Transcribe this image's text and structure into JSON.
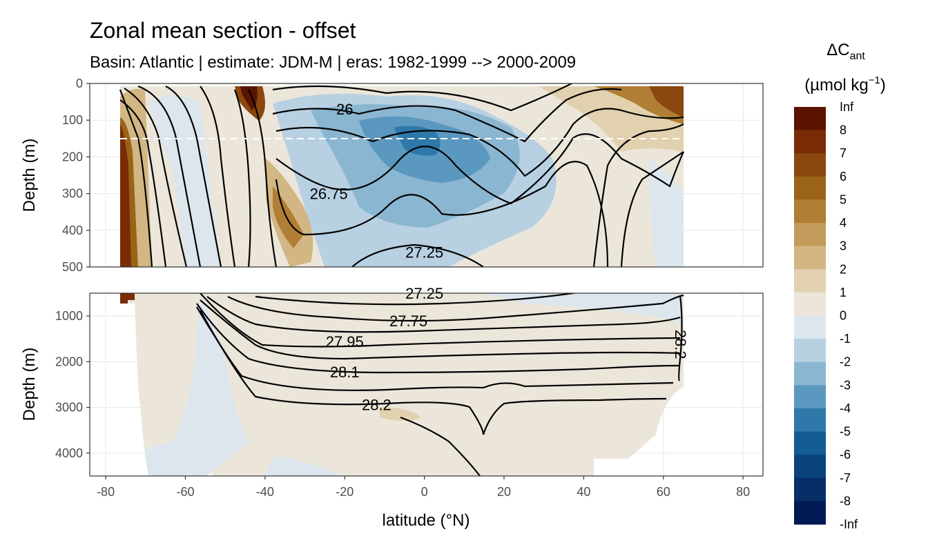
{
  "chart_data": {
    "type": "contour",
    "title": "Zonal mean section - offset",
    "subtitle": "Basin: Atlantic | estimate: JDM-M | eras: 1982-1999 --> 2000-2009",
    "xlabel": "latitude (°N)",
    "ylabel_top": "Depth (m)",
    "ylabel_bottom": "Depth (m)",
    "x_ticks": [
      -80,
      -60,
      -40,
      -20,
      0,
      20,
      40,
      60,
      80
    ],
    "x_tick_labels": [
      "-80",
      "-60",
      "-40",
      "-20",
      "0",
      "20",
      "40",
      "60",
      "80"
    ],
    "xlim": [
      -84,
      85
    ],
    "top_panel": {
      "ylim": [
        500,
        0
      ],
      "y_ticks": [
        0,
        100,
        200,
        300,
        400,
        500
      ],
      "y_tick_labels": [
        "0",
        "100",
        "200",
        "300",
        "400",
        "500"
      ],
      "reference_depth": 150
    },
    "bottom_panel": {
      "ylim": [
        4500,
        500
      ],
      "y_ticks": [
        1000,
        2000,
        3000,
        4000
      ],
      "y_tick_labels": [
        "1000",
        "2000",
        "3000",
        "4000"
      ]
    },
    "contour_labels": [
      {
        "text": "26",
        "lat": -20,
        "depth": 70
      },
      {
        "text": "26.75",
        "lat": -24,
        "depth": 300
      },
      {
        "text": "27.25",
        "lat": 0,
        "depth": 460
      },
      {
        "text": "27.25",
        "lat": 0,
        "depth": 450
      },
      {
        "text": "27.75",
        "lat": -4,
        "depth": 1100
      },
      {
        "text": "27.95",
        "lat": -20,
        "depth": 1560
      },
      {
        "text": "28.1",
        "lat": -20,
        "depth": 2220
      },
      {
        "text": "28.2",
        "lat": -12,
        "depth": 2940
      },
      {
        "text": "28.2",
        "lat": 63,
        "depth": 1500
      }
    ],
    "legend": {
      "title_main": "ΔC",
      "title_sub": "ant",
      "title_units": "(µmol kg",
      "title_sup": "−1",
      "title_close": ")",
      "position": "right",
      "labels": [
        "Inf",
        "8",
        "7",
        "6",
        "5",
        "4",
        "3",
        "2",
        "1",
        "0",
        "-1",
        "-2",
        "-3",
        "-4",
        "-5",
        "-6",
        "-7",
        "-8",
        "-Inf"
      ],
      "colors": [
        "#5a1400",
        "#7a2c06",
        "#8a470e",
        "#9a6418",
        "#b07e34",
        "#c29a5a",
        "#d2b683",
        "#e2d1ae",
        "#ece6da",
        "#dce6ec",
        "#b8d1e2",
        "#8bb6d1",
        "#5b98bf",
        "#2f79aa",
        "#135c94",
        "#0b437c",
        "#072e66",
        "#021a54"
      ]
    }
  }
}
